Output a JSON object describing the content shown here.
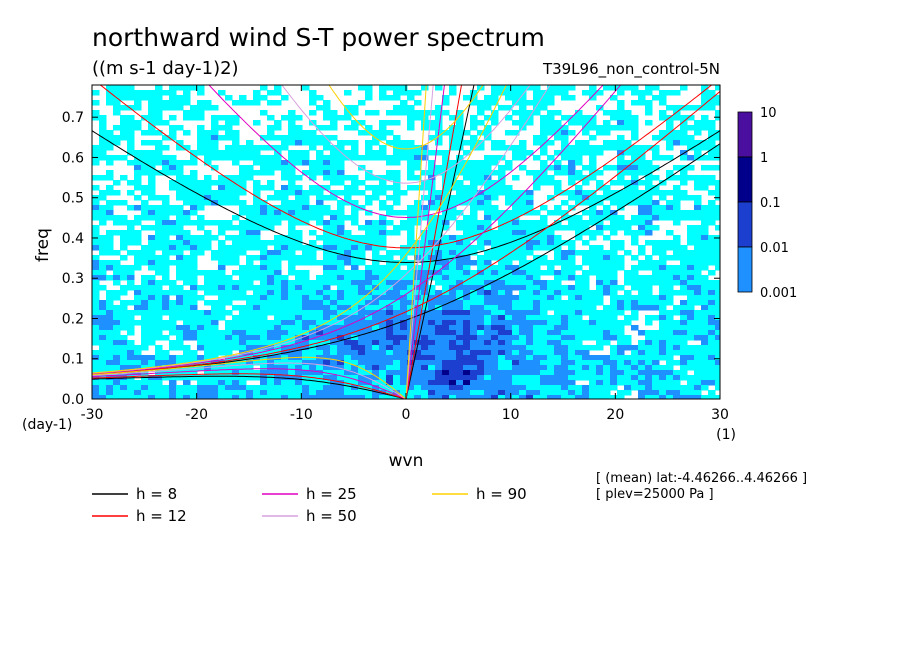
{
  "chart_data": {
    "type": "heatmap",
    "title": "northward wind S-T power spectrum",
    "subtitle": "((m s-1 day-1)2)",
    "run_label": "T39L96_non_control-5N",
    "xlabel": "wvn",
    "ylabel": "freq",
    "x_unit": "(1)",
    "y_unit": "(day-1)",
    "xlim": [
      -30,
      30
    ],
    "ylim": [
      0.0,
      0.78
    ],
    "x_ticks": [
      -30,
      -20,
      -10,
      0,
      10,
      20,
      30
    ],
    "x_tick_labels": [
      "-30",
      "-20",
      "-10",
      "0",
      "10",
      "20",
      "30"
    ],
    "y_ticks": [
      0.0,
      0.1,
      0.2,
      0.3,
      0.4,
      0.5,
      0.6,
      0.7
    ],
    "y_tick_labels": [
      "0.0",
      "0.1",
      "0.2",
      "0.3",
      "0.4",
      "0.5",
      "0.6",
      "0.7"
    ],
    "colorbar": {
      "levels": [
        0.001,
        0.01,
        0.1,
        1,
        10
      ],
      "labels": [
        "0.001",
        "0.01",
        "0.1",
        "1",
        "10"
      ],
      "colors": [
        "#00ffff",
        "#1e90ff",
        "#1c3fd0",
        "#00008b",
        "#4b0fa0"
      ]
    },
    "dispersion_curves": [
      {
        "name": "h = 8",
        "h": 8,
        "color": "#000000"
      },
      {
        "name": "h = 12",
        "h": 12,
        "color": "#ff0000"
      },
      {
        "name": "h = 25",
        "h": 25,
        "color": "#e000c0"
      },
      {
        "name": "h = 50",
        "h": 50,
        "color": "#d8a0e0"
      },
      {
        "name": "h = 90",
        "h": 90,
        "color": "#ffd000"
      }
    ],
    "legend": {
      "items": [
        {
          "label": "h = 8",
          "color": "#000000"
        },
        {
          "label": "h = 12",
          "color": "#ff0000"
        },
        {
          "label": "h = 25",
          "color": "#e000c0"
        },
        {
          "label": "h = 50",
          "color": "#d8a0e0"
        },
        {
          "label": "h = 90",
          "color": "#ffd000"
        }
      ]
    },
    "annotation": {
      "line1": "[ (mean) lat:-4.46266..4.46266 ]",
      "line2": "[ plev=25000 Pa ]"
    }
  }
}
